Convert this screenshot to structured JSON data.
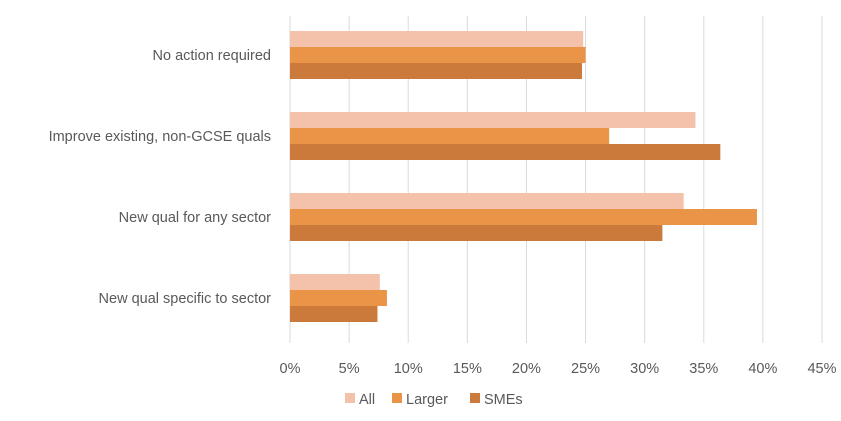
{
  "chart_data": {
    "type": "bar",
    "orientation": "horizontal",
    "categories": [
      "No action required",
      "Improve existing, non-GCSE quals",
      "New qual for any sector",
      "New qual specific to sector"
    ],
    "series": [
      {
        "name": "All",
        "color": "#f4c2ab",
        "values": [
          24.8,
          34.3,
          33.3,
          7.6
        ]
      },
      {
        "name": "Larger",
        "color": "#ea9447",
        "values": [
          25.0,
          27.0,
          39.5,
          8.2
        ]
      },
      {
        "name": "SMEs",
        "color": "#cc7a3c",
        "values": [
          24.7,
          36.4,
          31.5,
          7.4
        ]
      }
    ],
    "xlim": [
      0,
      45
    ],
    "xticks": [
      "0%",
      "5%",
      "10%",
      "15%",
      "20%",
      "25%",
      "30%",
      "35%",
      "40%",
      "45%"
    ],
    "grid": true,
    "legend_position": "bottom"
  }
}
